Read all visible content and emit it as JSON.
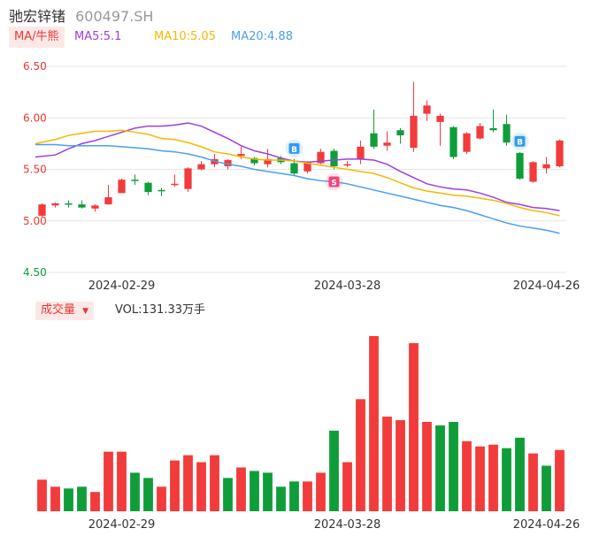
{
  "header": {
    "name": "驰宏锌锗",
    "code": "600497.SH"
  },
  "legend": {
    "tab_label": "MA/牛熊",
    "ma5": "MA5:5.1",
    "ma10": "MA10:5.05",
    "ma20": "MA20:4.88"
  },
  "volume_panel": {
    "tab_label": "成交量",
    "vol_label": "VOL:131.33万手"
  },
  "colors": {
    "up": "#f23b3b",
    "down": "#0f9d3a",
    "ma5": "#9b3fe6",
    "ma10": "#f5b800",
    "ma20": "#4a9ff0",
    "grid": "#e6e6e6"
  },
  "chart_data": [
    {
      "type": "candlestick",
      "y_ticks": [
        "6.50",
        "6.00",
        "5.50",
        "5.00",
        "4.50"
      ],
      "ylim": [
        4.5,
        6.5
      ],
      "x_tick_labels": [
        "2024-02-29",
        "2024-03-28",
        "2024-04-26"
      ],
      "markers": [
        {
          "label": "B",
          "index": 19
        },
        {
          "label": "S",
          "index": 22
        },
        {
          "label": "B",
          "index": 36
        }
      ],
      "candles": [
        {
          "o": 5.05,
          "c": 5.16,
          "h": 5.17,
          "l": 5.04
        },
        {
          "o": 5.15,
          "c": 5.17,
          "h": 5.18,
          "l": 5.13
        },
        {
          "o": 5.17,
          "c": 5.16,
          "h": 5.2,
          "l": 5.13
        },
        {
          "o": 5.16,
          "c": 5.13,
          "h": 5.2,
          "l": 5.12
        },
        {
          "o": 5.12,
          "c": 5.15,
          "h": 5.16,
          "l": 5.09
        },
        {
          "o": 5.16,
          "c": 5.23,
          "h": 5.35,
          "l": 5.16
        },
        {
          "o": 5.27,
          "c": 5.4,
          "h": 5.41,
          "l": 5.27
        },
        {
          "o": 5.4,
          "c": 5.39,
          "h": 5.45,
          "l": 5.35
        },
        {
          "o": 5.37,
          "c": 5.28,
          "h": 5.38,
          "l": 5.25
        },
        {
          "o": 5.3,
          "c": 5.29,
          "h": 5.32,
          "l": 5.24
        },
        {
          "o": 5.35,
          "c": 5.36,
          "h": 5.45,
          "l": 5.33
        },
        {
          "o": 5.31,
          "c": 5.51,
          "h": 5.52,
          "l": 5.28
        },
        {
          "o": 5.5,
          "c": 5.55,
          "h": 5.58,
          "l": 5.49
        },
        {
          "o": 5.55,
          "c": 5.6,
          "h": 5.65,
          "l": 5.52
        },
        {
          "o": 5.53,
          "c": 5.59,
          "h": 5.6,
          "l": 5.5
        },
        {
          "o": 5.63,
          "c": 5.65,
          "h": 5.72,
          "l": 5.6
        },
        {
          "o": 5.61,
          "c": 5.56,
          "h": 5.62,
          "l": 5.54
        },
        {
          "o": 5.55,
          "c": 5.6,
          "h": 5.7,
          "l": 5.52
        },
        {
          "o": 5.61,
          "c": 5.57,
          "h": 5.63,
          "l": 5.55
        },
        {
          "o": 5.56,
          "c": 5.46,
          "h": 5.6,
          "l": 5.44
        },
        {
          "o": 5.48,
          "c": 5.57,
          "h": 5.58,
          "l": 5.46
        },
        {
          "o": 5.56,
          "c": 5.67,
          "h": 5.7,
          "l": 5.55
        },
        {
          "o": 5.68,
          "c": 5.53,
          "h": 5.7,
          "l": 5.5
        },
        {
          "o": 5.54,
          "c": 5.55,
          "h": 5.58,
          "l": 5.52
        },
        {
          "o": 5.6,
          "c": 5.72,
          "h": 5.78,
          "l": 5.55
        },
        {
          "o": 5.85,
          "c": 5.72,
          "h": 6.08,
          "l": 5.7
        },
        {
          "o": 5.73,
          "c": 5.76,
          "h": 5.87,
          "l": 5.68
        },
        {
          "o": 5.88,
          "c": 5.83,
          "h": 5.9,
          "l": 5.75
        },
        {
          "o": 5.71,
          "c": 6.02,
          "h": 6.35,
          "l": 5.67
        },
        {
          "o": 6.04,
          "c": 6.12,
          "h": 6.17,
          "l": 5.97
        },
        {
          "o": 5.96,
          "c": 6.02,
          "h": 6.04,
          "l": 5.73
        },
        {
          "o": 5.91,
          "c": 5.62,
          "h": 5.92,
          "l": 5.6
        },
        {
          "o": 5.67,
          "c": 5.85,
          "h": 5.86,
          "l": 5.65
        },
        {
          "o": 5.8,
          "c": 5.92,
          "h": 5.95,
          "l": 5.79
        },
        {
          "o": 5.9,
          "c": 5.88,
          "h": 6.08,
          "l": 5.86
        },
        {
          "o": 5.94,
          "c": 5.76,
          "h": 6.03,
          "l": 5.73
        },
        {
          "o": 5.66,
          "c": 5.41,
          "h": 5.67,
          "l": 5.4
        },
        {
          "o": 5.38,
          "c": 5.57,
          "h": 5.58,
          "l": 5.37
        },
        {
          "o": 5.51,
          "c": 5.55,
          "h": 5.62,
          "l": 5.46
        },
        {
          "o": 5.53,
          "c": 5.78,
          "h": 5.79,
          "l": 5.52
        }
      ],
      "ma5": [
        5.62,
        5.64,
        5.7,
        5.75,
        5.78,
        5.82,
        5.86,
        5.9,
        5.92,
        5.92,
        5.93,
        5.95,
        5.92,
        5.86,
        5.8,
        5.73,
        5.68,
        5.65,
        5.61,
        5.58,
        5.57,
        5.58,
        5.59,
        5.6,
        5.6,
        5.59,
        5.55,
        5.48,
        5.42,
        5.36,
        5.33,
        5.31,
        5.3,
        5.27,
        5.23,
        5.18,
        5.16,
        5.13,
        5.12,
        5.1
      ],
      "ma10": [
        5.75,
        5.79,
        5.83,
        5.85,
        5.87,
        5.87,
        5.88,
        5.86,
        5.84,
        5.8,
        5.79,
        5.76,
        5.72,
        5.67,
        5.65,
        5.62,
        5.6,
        5.59,
        5.59,
        5.58,
        5.56,
        5.54,
        5.52,
        5.5,
        5.48,
        5.46,
        5.42,
        5.37,
        5.32,
        5.29,
        5.27,
        5.25,
        5.24,
        5.22,
        5.2,
        5.17,
        5.13,
        5.1,
        5.08,
        5.05
      ],
      "ma20": [
        5.74,
        5.74,
        5.73,
        5.73,
        5.73,
        5.73,
        5.72,
        5.71,
        5.7,
        5.68,
        5.67,
        5.65,
        5.62,
        5.58,
        5.55,
        5.53,
        5.5,
        5.48,
        5.46,
        5.44,
        5.41,
        5.39,
        5.38,
        5.36,
        5.33,
        5.3,
        5.27,
        5.24,
        5.21,
        5.18,
        5.15,
        5.13,
        5.1,
        5.06,
        5.02,
        4.98,
        4.95,
        4.93,
        4.91,
        4.88
      ]
    },
    {
      "type": "bar",
      "title": "成交量",
      "ylim": [
        0,
        100
      ],
      "values": [
        18,
        14,
        13,
        14,
        11,
        34,
        34,
        22,
        19,
        14,
        29,
        32,
        28,
        32,
        19,
        25,
        23,
        22,
        14,
        17,
        17,
        22,
        46,
        28,
        64,
        100,
        54,
        52,
        96,
        51,
        49,
        51,
        40,
        37,
        38,
        36,
        42,
        33,
        26,
        35
      ],
      "up": [
        true,
        true,
        false,
        false,
        true,
        true,
        true,
        false,
        false,
        true,
        true,
        true,
        true,
        true,
        false,
        true,
        false,
        false,
        false,
        false,
        true,
        true,
        false,
        true,
        true,
        true,
        true,
        true,
        true,
        true,
        false,
        false,
        true,
        true,
        true,
        false,
        false,
        true,
        false,
        true
      ],
      "x_tick_labels": [
        "2024-02-29",
        "2024-03-28",
        "2024-04-26"
      ]
    }
  ]
}
